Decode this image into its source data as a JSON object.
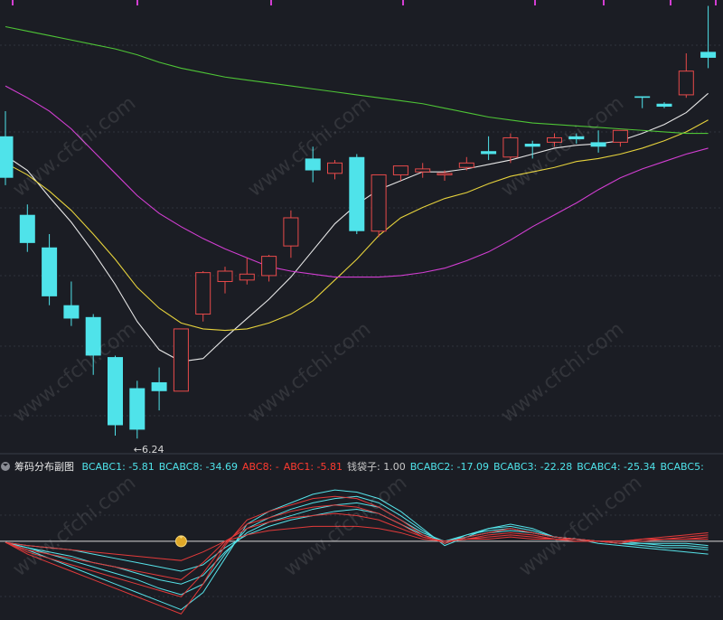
{
  "colors": {
    "background": "#1b1d24",
    "up": "#e84a4a",
    "down": "#4fe3ea",
    "ma_white": "#e6e6e6",
    "ma_yellow": "#e6d23c",
    "ma_magenta": "#d23ed2",
    "ma_green": "#4ec436",
    "sub_cyan": "#56e2e8",
    "sub_red": "#e23a3a",
    "label_cyan": "#4fe3ea",
    "label_red": "#ff3b30",
    "label_gray": "#c8c8c8",
    "annotation": "#d8d8d8"
  },
  "watermark": "www.cfchi.com",
  "subchart": {
    "title": "筹码分布副图",
    "icon": "chevron-down-icon",
    "marker_icon": "money-bag-icon",
    "labels": [
      {
        "text": "BCABC1: -5.81",
        "color": "cyan"
      },
      {
        "text": "BCABC8: -34.69",
        "color": "cyan"
      },
      {
        "text": "ABC8: -",
        "color": "red"
      },
      {
        "text": "ABC1: -5.81",
        "color": "red"
      },
      {
        "text": "钱袋子: 1.00",
        "color": "gray"
      },
      {
        "text": "BCABC2: -17.09",
        "color": "cyan"
      },
      {
        "text": "BCABC3: -22.28",
        "color": "cyan"
      },
      {
        "text": "BCABC4: -25.34",
        "color": "cyan"
      },
      {
        "text": "BCABC5:",
        "color": "cyan"
      }
    ]
  },
  "chart_data": [
    {
      "type": "candlestick",
      "annotation": "←6.24",
      "low_marker_value": 6.24,
      "ylim": [
        6.15,
        9.2
      ],
      "candles": [
        {
          "o": 8.28,
          "c": 8.0,
          "h": 8.45,
          "l": 7.95
        },
        {
          "o": 7.75,
          "c": 7.56,
          "h": 7.82,
          "l": 7.5
        },
        {
          "o": 7.53,
          "c": 7.2,
          "h": 7.62,
          "l": 7.14
        },
        {
          "o": 7.14,
          "c": 7.05,
          "h": 7.3,
          "l": 7.0
        },
        {
          "o": 7.06,
          "c": 6.8,
          "h": 7.08,
          "l": 6.67
        },
        {
          "o": 6.79,
          "c": 6.33,
          "h": 6.8,
          "l": 6.26
        },
        {
          "o": 6.58,
          "c": 6.3,
          "h": 6.63,
          "l": 6.24
        },
        {
          "o": 6.62,
          "c": 6.56,
          "h": 6.72,
          "l": 6.43
        },
        {
          "o": 6.56,
          "c": 6.98,
          "h": 6.98,
          "l": 6.56
        },
        {
          "o": 7.08,
          "c": 7.36,
          "h": 7.37,
          "l": 7.03
        },
        {
          "o": 7.3,
          "c": 7.37,
          "h": 7.4,
          "l": 7.22
        },
        {
          "o": 7.31,
          "c": 7.35,
          "h": 7.46,
          "l": 7.28
        },
        {
          "o": 7.34,
          "c": 7.47,
          "h": 7.48,
          "l": 7.3
        },
        {
          "o": 7.54,
          "c": 7.73,
          "h": 7.78,
          "l": 7.46
        },
        {
          "o": 8.13,
          "c": 8.05,
          "h": 8.21,
          "l": 7.97
        },
        {
          "o": 8.03,
          "c": 8.1,
          "h": 8.12,
          "l": 7.99
        },
        {
          "o": 8.14,
          "c": 7.64,
          "h": 8.16,
          "l": 7.62
        },
        {
          "o": 7.64,
          "c": 8.02,
          "h": 8.02,
          "l": 7.6
        },
        {
          "o": 8.02,
          "c": 8.08,
          "h": 8.08,
          "l": 7.98
        },
        {
          "o": 8.04,
          "c": 8.06,
          "h": 8.1,
          "l": 8.0
        },
        {
          "o": 8.02,
          "c": 8.03,
          "h": 8.05,
          "l": 7.98
        },
        {
          "o": 8.07,
          "c": 8.1,
          "h": 8.14,
          "l": 8.05
        },
        {
          "o": 8.18,
          "c": 8.16,
          "h": 8.28,
          "l": 8.12
        },
        {
          "o": 8.14,
          "c": 8.27,
          "h": 8.3,
          "l": 8.1
        },
        {
          "o": 8.23,
          "c": 8.21,
          "h": 8.25,
          "l": 8.13
        },
        {
          "o": 8.24,
          "c": 8.27,
          "h": 8.3,
          "l": 8.21
        },
        {
          "o": 8.28,
          "c": 8.26,
          "h": 8.3,
          "l": 8.23
        },
        {
          "o": 8.24,
          "c": 8.21,
          "h": 8.32,
          "l": 8.17
        },
        {
          "o": 8.24,
          "c": 8.32,
          "h": 8.32,
          "l": 8.21
        },
        {
          "o": 8.55,
          "c": 8.54,
          "h": 8.55,
          "l": 8.47
        },
        {
          "o": 8.5,
          "c": 8.48,
          "h": 8.51,
          "l": 8.47
        },
        {
          "o": 8.56,
          "c": 8.72,
          "h": 8.84,
          "l": 8.54
        },
        {
          "o": 8.85,
          "c": 8.81,
          "h": 9.16,
          "l": 8.74
        }
      ],
      "ma": [
        {
          "color": "ma_white",
          "values": [
            8.15,
            8.05,
            7.87,
            7.7,
            7.5,
            7.28,
            7.03,
            6.84,
            6.76,
            6.78,
            6.92,
            7.05,
            7.18,
            7.33,
            7.51,
            7.69,
            7.82,
            7.92,
            7.98,
            8.04,
            8.04,
            8.06,
            8.09,
            8.12,
            8.16,
            8.2,
            8.22,
            8.23,
            8.25,
            8.3,
            8.36,
            8.44,
            8.57
          ]
        },
        {
          "color": "ma_yellow",
          "values": [
            8.1,
            8.02,
            7.91,
            7.78,
            7.62,
            7.45,
            7.26,
            7.12,
            7.02,
            6.98,
            6.97,
            6.98,
            7.02,
            7.08,
            7.17,
            7.31,
            7.45,
            7.61,
            7.73,
            7.8,
            7.86,
            7.9,
            7.96,
            8.01,
            8.04,
            8.07,
            8.11,
            8.13,
            8.16,
            8.2,
            8.25,
            8.31,
            8.39
          ]
        },
        {
          "color": "ma_magenta",
          "values": [
            8.62,
            8.54,
            8.45,
            8.33,
            8.18,
            8.03,
            7.88,
            7.76,
            7.67,
            7.59,
            7.52,
            7.46,
            7.4,
            7.37,
            7.35,
            7.33,
            7.33,
            7.33,
            7.34,
            7.36,
            7.39,
            7.44,
            7.5,
            7.58,
            7.67,
            7.75,
            7.83,
            7.92,
            8.0,
            8.06,
            8.11,
            8.16,
            8.2
          ]
        },
        {
          "color": "ma_green",
          "values": [
            9.02,
            8.99,
            8.96,
            8.93,
            8.9,
            8.87,
            8.83,
            8.78,
            8.74,
            8.71,
            8.68,
            8.66,
            8.64,
            8.62,
            8.6,
            8.58,
            8.56,
            8.54,
            8.52,
            8.5,
            8.47,
            8.44,
            8.41,
            8.39,
            8.37,
            8.36,
            8.35,
            8.34,
            8.33,
            8.32,
            8.31,
            8.3,
            8.3
          ]
        }
      ]
    },
    {
      "type": "line",
      "ylim": [
        -36,
        30
      ],
      "baseline": 0,
      "marker_index": 8,
      "series": [
        {
          "color": "sub_cyan",
          "values": [
            -0.5,
            -4,
            -8,
            -12,
            -16,
            -20,
            -24,
            -28,
            -32,
            -24,
            -8,
            8,
            14,
            18,
            22,
            24,
            23,
            20,
            14,
            6,
            -2,
            2,
            6,
            8,
            6,
            2,
            1,
            -1,
            -2,
            -3,
            -4,
            -5,
            -6
          ]
        },
        {
          "color": "sub_cyan",
          "values": [
            -0.5,
            -3,
            -6,
            -9,
            -12,
            -15,
            -18,
            -22,
            -25,
            -20,
            -6,
            6,
            11,
            15,
            18,
            20,
            21,
            18,
            12,
            5,
            -1,
            3,
            6,
            7,
            5,
            2,
            1,
            0,
            -1,
            -2,
            -3,
            -3,
            -4
          ]
        },
        {
          "color": "sub_cyan",
          "values": [
            -0.5,
            -3,
            -5,
            -7,
            -10,
            -12,
            -15,
            -18,
            -20,
            -16,
            -5,
            4,
            9,
            12,
            15,
            17,
            18,
            16,
            10,
            4,
            0,
            3,
            5,
            6,
            4,
            2,
            1,
            0,
            -1,
            -1,
            -2,
            -2,
            -3
          ]
        },
        {
          "color": "sub_cyan",
          "values": [
            -0.5,
            -2,
            -3,
            -4,
            -6,
            -8,
            -10,
            -12,
            -14,
            -11,
            -3,
            3,
            7,
            10,
            12,
            14,
            15,
            13,
            8,
            3,
            0,
            2,
            4,
            5,
            4,
            2,
            1,
            0,
            0,
            -1,
            -1,
            -1,
            -2
          ]
        },
        {
          "color": "sub_red",
          "values": [
            -0.5,
            -6,
            -10,
            -14,
            -18,
            -22,
            -26,
            -30,
            -34,
            -20,
            -2,
            10,
            14,
            17,
            20,
            21,
            20,
            16,
            10,
            3,
            -1,
            2,
            4,
            6,
            4,
            2,
            1,
            0,
            -1,
            1,
            2,
            3,
            4
          ]
        },
        {
          "color": "sub_red",
          "values": [
            -0.5,
            -5,
            -8,
            -11,
            -14,
            -17,
            -20,
            -23,
            -26,
            -15,
            -1,
            8,
            11,
            14,
            16,
            17,
            16,
            13,
            8,
            2,
            0,
            1,
            3,
            4,
            3,
            1,
            1,
            0,
            0,
            1,
            1,
            2,
            3
          ]
        },
        {
          "color": "sub_red",
          "values": [
            -0.5,
            -4,
            -6,
            -8,
            -10,
            -12,
            -14,
            -16,
            -18,
            -10,
            0,
            6,
            9,
            11,
            12,
            13,
            12,
            10,
            6,
            2,
            0,
            1,
            2,
            3,
            2,
            1,
            0,
            0,
            0,
            1,
            1,
            1,
            2
          ]
        },
        {
          "color": "sub_red",
          "values": [
            -0.5,
            -2,
            -3,
            -4,
            -5,
            -6,
            -7,
            -8,
            -9,
            -5,
            0,
            3,
            5,
            6,
            7,
            7,
            7,
            6,
            4,
            1,
            0,
            1,
            1,
            2,
            1,
            1,
            0,
            0,
            0,
            0,
            1,
            1,
            1
          ]
        }
      ]
    }
  ]
}
